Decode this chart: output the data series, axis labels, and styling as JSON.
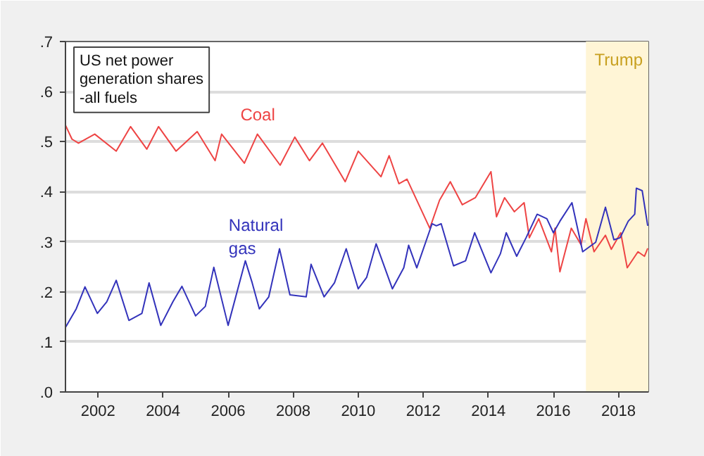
{
  "chart_data": {
    "type": "line",
    "title": "US net power generation shares -all fuels",
    "xlim": [
      2001,
      2018.92
    ],
    "xticks": [
      2002,
      2004,
      2006,
      2008,
      2010,
      2012,
      2014,
      2016,
      2018
    ],
    "ylim": [
      0,
      0.7
    ],
    "yticks": [
      {
        "value": 0,
        "label": ".0"
      },
      {
        "value": 0.1,
        "label": ".1"
      },
      {
        "value": 0.2,
        "label": ".2"
      },
      {
        "value": 0.3,
        "label": ".3"
      },
      {
        "value": 0.4,
        "label": ".4"
      },
      {
        "value": 0.5,
        "label": ".5"
      },
      {
        "value": 0.6,
        "label": ".6"
      },
      {
        "value": 0.7,
        "label": ".7"
      }
    ],
    "grid": "y",
    "legend": false,
    "bands": [
      {
        "axis": "x",
        "from": 2017,
        "to": 2018.92,
        "label": "Trump",
        "color": "#fff5d6"
      }
    ],
    "series": [
      {
        "name": "Coal",
        "color": "#ee4444",
        "x": [
          2001.0,
          2001.2,
          2001.4,
          2001.9,
          2002.56,
          2003.0,
          2003.5,
          2003.86,
          2004.4,
          2005.05,
          2005.6,
          2005.8,
          2006.5,
          2006.9,
          2007.6,
          2008.05,
          2008.5,
          2008.9,
          2009.6,
          2010.0,
          2010.7,
          2010.95,
          2011.25,
          2011.5,
          2012.2,
          2012.5,
          2012.83,
          2013.2,
          2013.6,
          2014.08,
          2014.25,
          2014.5,
          2014.8,
          2015.1,
          2015.26,
          2015.55,
          2015.94,
          2016.05,
          2016.2,
          2016.55,
          2016.85,
          2017.0,
          2017.25,
          2017.6,
          2017.78,
          2018.07,
          2018.27,
          2018.6,
          2018.8,
          2018.9
        ],
        "values": [
          0.533,
          0.505,
          0.497,
          0.515,
          0.481,
          0.53,
          0.485,
          0.53,
          0.481,
          0.52,
          0.462,
          0.515,
          0.457,
          0.515,
          0.453,
          0.509,
          0.462,
          0.497,
          0.42,
          0.481,
          0.43,
          0.472,
          0.416,
          0.425,
          0.327,
          0.383,
          0.42,
          0.374,
          0.388,
          0.44,
          0.35,
          0.388,
          0.36,
          0.378,
          0.308,
          0.346,
          0.28,
          0.327,
          0.24,
          0.327,
          0.294,
          0.346,
          0.28,
          0.313,
          0.285,
          0.318,
          0.248,
          0.28,
          0.271,
          0.287
        ]
      },
      {
        "name": "Natural gas",
        "color": "#3333bb",
        "x": [
          2001.0,
          2001.33,
          2001.6,
          2001.98,
          2002.27,
          2002.56,
          2002.95,
          2003.35,
          2003.57,
          2003.93,
          2004.3,
          2004.58,
          2005.0,
          2005.3,
          2005.56,
          2006.0,
          2006.53,
          2006.74,
          2006.96,
          2007.25,
          2007.58,
          2007.9,
          2008.4,
          2008.55,
          2008.95,
          2009.27,
          2009.63,
          2010.0,
          2010.26,
          2010.55,
          2011.05,
          2011.4,
          2011.55,
          2011.8,
          2012.27,
          2012.4,
          2012.55,
          2012.93,
          2013.3,
          2013.58,
          2014.08,
          2014.37,
          2014.55,
          2014.87,
          2015.16,
          2015.5,
          2015.8,
          2016.0,
          2016.2,
          2016.57,
          2016.9,
          2017.3,
          2017.6,
          2017.86,
          2018.05,
          2018.3,
          2018.5,
          2018.55,
          2018.73,
          2018.9
        ],
        "values": [
          0.129,
          0.166,
          0.21,
          0.157,
          0.18,
          0.223,
          0.143,
          0.157,
          0.218,
          0.133,
          0.18,
          0.211,
          0.152,
          0.171,
          0.249,
          0.133,
          0.262,
          0.218,
          0.166,
          0.19,
          0.286,
          0.194,
          0.19,
          0.255,
          0.19,
          0.218,
          0.286,
          0.206,
          0.229,
          0.296,
          0.206,
          0.248,
          0.293,
          0.248,
          0.336,
          0.332,
          0.336,
          0.252,
          0.262,
          0.318,
          0.238,
          0.276,
          0.318,
          0.271,
          0.308,
          0.355,
          0.346,
          0.318,
          0.341,
          0.378,
          0.28,
          0.299,
          0.369,
          0.304,
          0.308,
          0.341,
          0.355,
          0.407,
          0.402,
          0.332
        ]
      }
    ]
  }
}
